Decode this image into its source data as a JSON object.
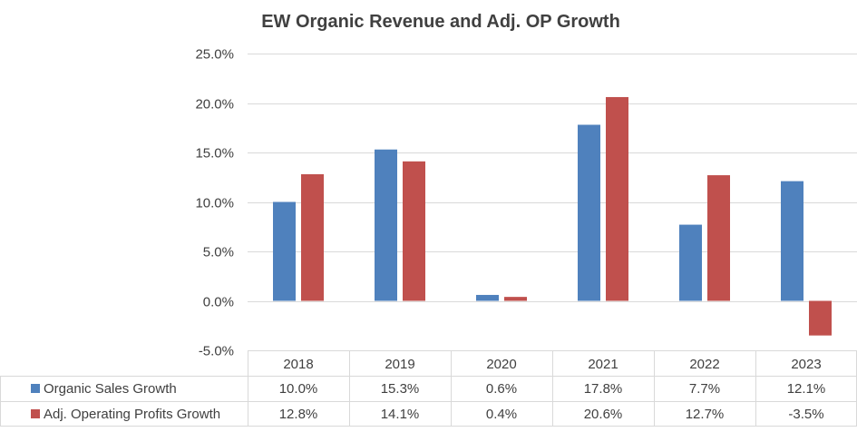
{
  "chart_data": {
    "type": "bar",
    "title": "EW Organic Revenue and Adj. OP Growth",
    "categories": [
      "2018",
      "2019",
      "2020",
      "2021",
      "2022",
      "2023"
    ],
    "series": [
      {
        "name": "Organic Sales Growth",
        "values": [
          10.0,
          15.3,
          0.6,
          17.8,
          7.7,
          12.1
        ],
        "labels": [
          "10.0%",
          "15.3%",
          "0.6%",
          "17.8%",
          "7.7%",
          "12.1%"
        ],
        "color": "#4f81bd"
      },
      {
        "name": "Adj. Operating Profits Growth",
        "values": [
          12.8,
          14.1,
          0.4,
          20.6,
          12.7,
          -3.5
        ],
        "labels": [
          "12.8%",
          "14.1%",
          "0.4%",
          "20.6%",
          "12.7%",
          "-3.5%"
        ],
        "color": "#c0504d"
      }
    ],
    "ylim": [
      -5,
      25
    ],
    "yticks": [
      25,
      20,
      15,
      10,
      5,
      0,
      -5
    ],
    "ytick_labels": [
      "25.0%",
      "20.0%",
      "15.0%",
      "10.0%",
      "5.0%",
      "0.0%",
      "-5.0%"
    ],
    "grid": true,
    "legend": "data-table"
  }
}
